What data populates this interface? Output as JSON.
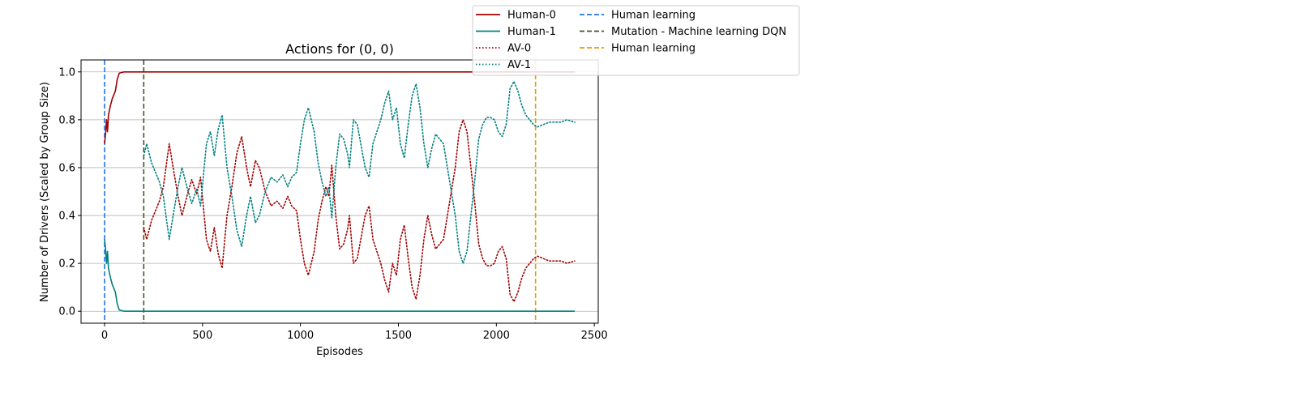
{
  "chart_data": {
    "type": "line",
    "title": "Actions for (0, 0)",
    "xlabel": "Episodes",
    "ylabel": "Number of Drivers (Scaled by Group Size)",
    "xlim": [
      -120,
      2520
    ],
    "ylim": [
      -0.05,
      1.05
    ],
    "x_ticks": [
      0,
      500,
      1000,
      1500,
      2000,
      2500
    ],
    "x_tick_labels": [
      "0",
      "500",
      "1000",
      "1500",
      "2000",
      "2500"
    ],
    "y_ticks": [
      0.0,
      0.2,
      0.4,
      0.6,
      0.8,
      1.0
    ],
    "y_tick_labels": [
      "0.0",
      "0.2",
      "0.4",
      "0.6",
      "0.8",
      "1.0"
    ],
    "grid": "horizontal",
    "legend_position": "top-right, outside plot",
    "series": [
      {
        "name": "Human-0",
        "color": "#a00000",
        "style": "solid",
        "points": [
          [
            0,
            0.7
          ],
          [
            5,
            0.74
          ],
          [
            10,
            0.8
          ],
          [
            15,
            0.75
          ],
          [
            20,
            0.82
          ],
          [
            30,
            0.86
          ],
          [
            40,
            0.89
          ],
          [
            55,
            0.92
          ],
          [
            65,
            0.97
          ],
          [
            75,
            0.995
          ],
          [
            100,
            1.0
          ],
          [
            200,
            1.0
          ],
          [
            500,
            1.0
          ],
          [
            1000,
            1.0
          ],
          [
            1500,
            1.0
          ],
          [
            2000,
            1.0
          ],
          [
            2400,
            1.0
          ]
        ]
      },
      {
        "name": "Human-1",
        "color": "#008080",
        "style": "solid",
        "points": [
          [
            0,
            0.3
          ],
          [
            5,
            0.26
          ],
          [
            10,
            0.2
          ],
          [
            15,
            0.25
          ],
          [
            20,
            0.18
          ],
          [
            30,
            0.14
          ],
          [
            40,
            0.11
          ],
          [
            55,
            0.08
          ],
          [
            65,
            0.03
          ],
          [
            75,
            0.005
          ],
          [
            100,
            0.0
          ],
          [
            200,
            0.0
          ],
          [
            500,
            0.0
          ],
          [
            1000,
            0.0
          ],
          [
            1500,
            0.0
          ],
          [
            2000,
            0.0
          ],
          [
            2400,
            0.0
          ]
        ]
      },
      {
        "name": "AV-0",
        "color": "#a00000",
        "style": "dotted",
        "points": [
          [
            200,
            0.35
          ],
          [
            215,
            0.3
          ],
          [
            240,
            0.38
          ],
          [
            280,
            0.46
          ],
          [
            300,
            0.52
          ],
          [
            330,
            0.7
          ],
          [
            350,
            0.6
          ],
          [
            375,
            0.48
          ],
          [
            395,
            0.4
          ],
          [
            420,
            0.48
          ],
          [
            445,
            0.55
          ],
          [
            470,
            0.49
          ],
          [
            490,
            0.56
          ],
          [
            520,
            0.3
          ],
          [
            540,
            0.25
          ],
          [
            560,
            0.35
          ],
          [
            580,
            0.24
          ],
          [
            600,
            0.18
          ],
          [
            625,
            0.4
          ],
          [
            650,
            0.52
          ],
          [
            675,
            0.66
          ],
          [
            700,
            0.73
          ],
          [
            725,
            0.6
          ],
          [
            745,
            0.52
          ],
          [
            770,
            0.63
          ],
          [
            790,
            0.6
          ],
          [
            820,
            0.5
          ],
          [
            850,
            0.44
          ],
          [
            880,
            0.46
          ],
          [
            910,
            0.43
          ],
          [
            935,
            0.48
          ],
          [
            955,
            0.44
          ],
          [
            980,
            0.42
          ],
          [
            1000,
            0.3
          ],
          [
            1020,
            0.2
          ],
          [
            1040,
            0.15
          ],
          [
            1070,
            0.25
          ],
          [
            1090,
            0.38
          ],
          [
            1110,
            0.46
          ],
          [
            1130,
            0.52
          ],
          [
            1145,
            0.48
          ],
          [
            1160,
            0.61
          ],
          [
            1180,
            0.4
          ],
          [
            1200,
            0.26
          ],
          [
            1220,
            0.28
          ],
          [
            1240,
            0.34
          ],
          [
            1250,
            0.4
          ],
          [
            1270,
            0.2
          ],
          [
            1290,
            0.22
          ],
          [
            1310,
            0.31
          ],
          [
            1330,
            0.4
          ],
          [
            1350,
            0.44
          ],
          [
            1370,
            0.3
          ],
          [
            1390,
            0.25
          ],
          [
            1410,
            0.2
          ],
          [
            1430,
            0.13
          ],
          [
            1450,
            0.08
          ],
          [
            1470,
            0.2
          ],
          [
            1490,
            0.15
          ],
          [
            1510,
            0.3
          ],
          [
            1530,
            0.36
          ],
          [
            1550,
            0.22
          ],
          [
            1570,
            0.1
          ],
          [
            1590,
            0.05
          ],
          [
            1610,
            0.15
          ],
          [
            1630,
            0.3
          ],
          [
            1650,
            0.4
          ],
          [
            1670,
            0.32
          ],
          [
            1690,
            0.26
          ],
          [
            1710,
            0.28
          ],
          [
            1730,
            0.3
          ],
          [
            1760,
            0.45
          ],
          [
            1790,
            0.6
          ],
          [
            1810,
            0.75
          ],
          [
            1830,
            0.8
          ],
          [
            1850,
            0.75
          ],
          [
            1870,
            0.6
          ],
          [
            1890,
            0.45
          ],
          [
            1910,
            0.28
          ],
          [
            1930,
            0.22
          ],
          [
            1950,
            0.19
          ],
          [
            1970,
            0.19
          ],
          [
            1990,
            0.2
          ],
          [
            2010,
            0.25
          ],
          [
            2030,
            0.27
          ],
          [
            2050,
            0.22
          ],
          [
            2070,
            0.07
          ],
          [
            2090,
            0.04
          ],
          [
            2110,
            0.08
          ],
          [
            2130,
            0.14
          ],
          [
            2150,
            0.18
          ],
          [
            2170,
            0.2
          ],
          [
            2190,
            0.22
          ],
          [
            2210,
            0.23
          ],
          [
            2240,
            0.22
          ],
          [
            2270,
            0.21
          ],
          [
            2300,
            0.21
          ],
          [
            2330,
            0.21
          ],
          [
            2360,
            0.2
          ],
          [
            2400,
            0.21
          ]
        ]
      },
      {
        "name": "AV-1",
        "color": "#008080",
        "style": "dotted",
        "points": [
          [
            200,
            0.65
          ],
          [
            215,
            0.7
          ],
          [
            240,
            0.62
          ],
          [
            280,
            0.54
          ],
          [
            300,
            0.48
          ],
          [
            330,
            0.3
          ],
          [
            350,
            0.4
          ],
          [
            375,
            0.52
          ],
          [
            395,
            0.6
          ],
          [
            420,
            0.52
          ],
          [
            445,
            0.45
          ],
          [
            470,
            0.51
          ],
          [
            490,
            0.44
          ],
          [
            520,
            0.7
          ],
          [
            540,
            0.75
          ],
          [
            560,
            0.65
          ],
          [
            580,
            0.76
          ],
          [
            600,
            0.82
          ],
          [
            625,
            0.6
          ],
          [
            650,
            0.48
          ],
          [
            675,
            0.34
          ],
          [
            700,
            0.27
          ],
          [
            725,
            0.4
          ],
          [
            745,
            0.48
          ],
          [
            770,
            0.37
          ],
          [
            790,
            0.4
          ],
          [
            820,
            0.5
          ],
          [
            850,
            0.56
          ],
          [
            880,
            0.54
          ],
          [
            910,
            0.57
          ],
          [
            935,
            0.52
          ],
          [
            955,
            0.56
          ],
          [
            980,
            0.58
          ],
          [
            1000,
            0.7
          ],
          [
            1020,
            0.8
          ],
          [
            1040,
            0.85
          ],
          [
            1070,
            0.75
          ],
          [
            1090,
            0.62
          ],
          [
            1110,
            0.54
          ],
          [
            1130,
            0.48
          ],
          [
            1145,
            0.52
          ],
          [
            1160,
            0.39
          ],
          [
            1180,
            0.6
          ],
          [
            1200,
            0.74
          ],
          [
            1220,
            0.72
          ],
          [
            1240,
            0.66
          ],
          [
            1250,
            0.6
          ],
          [
            1270,
            0.8
          ],
          [
            1290,
            0.78
          ],
          [
            1310,
            0.69
          ],
          [
            1330,
            0.6
          ],
          [
            1350,
            0.56
          ],
          [
            1370,
            0.7
          ],
          [
            1390,
            0.75
          ],
          [
            1410,
            0.8
          ],
          [
            1430,
            0.87
          ],
          [
            1450,
            0.92
          ],
          [
            1470,
            0.8
          ],
          [
            1490,
            0.85
          ],
          [
            1510,
            0.7
          ],
          [
            1530,
            0.64
          ],
          [
            1550,
            0.78
          ],
          [
            1570,
            0.9
          ],
          [
            1590,
            0.95
          ],
          [
            1610,
            0.85
          ],
          [
            1630,
            0.7
          ],
          [
            1650,
            0.6
          ],
          [
            1670,
            0.68
          ],
          [
            1690,
            0.74
          ],
          [
            1710,
            0.72
          ],
          [
            1730,
            0.7
          ],
          [
            1760,
            0.55
          ],
          [
            1790,
            0.4
          ],
          [
            1810,
            0.25
          ],
          [
            1830,
            0.2
          ],
          [
            1850,
            0.25
          ],
          [
            1870,
            0.4
          ],
          [
            1890,
            0.55
          ],
          [
            1910,
            0.72
          ],
          [
            1930,
            0.78
          ],
          [
            1950,
            0.81
          ],
          [
            1970,
            0.81
          ],
          [
            1990,
            0.8
          ],
          [
            2010,
            0.75
          ],
          [
            2030,
            0.73
          ],
          [
            2050,
            0.78
          ],
          [
            2070,
            0.93
          ],
          [
            2090,
            0.96
          ],
          [
            2110,
            0.92
          ],
          [
            2130,
            0.86
          ],
          [
            2150,
            0.82
          ],
          [
            2170,
            0.8
          ],
          [
            2190,
            0.78
          ],
          [
            2210,
            0.77
          ],
          [
            2240,
            0.78
          ],
          [
            2270,
            0.79
          ],
          [
            2300,
            0.79
          ],
          [
            2330,
            0.79
          ],
          [
            2360,
            0.8
          ],
          [
            2400,
            0.79
          ]
        ]
      }
    ],
    "vlines": [
      {
        "name": "Human learning",
        "x": 0,
        "color": "#1f77e6",
        "style": "dashed"
      },
      {
        "name": "Mutation - Machine learning DQN",
        "x": 200,
        "color": "#3d5a1e",
        "style": "dashed"
      },
      {
        "name": "Human learning",
        "x": 2200,
        "color": "#e89b0c",
        "style": "dashed"
      }
    ],
    "legend": [
      {
        "label": "Human-0",
        "color": "#a00000",
        "style": "solid"
      },
      {
        "label": "Human-1",
        "color": "#008080",
        "style": "solid"
      },
      {
        "label": "AV-0",
        "color": "#a00000",
        "style": "dotted"
      },
      {
        "label": "AV-1",
        "color": "#008080",
        "style": "dotted"
      },
      {
        "label": "Human learning",
        "color": "#1f77e6",
        "style": "dashed"
      },
      {
        "label": "Mutation - Machine learning DQN",
        "color": "#3d5a1e",
        "style": "dashed"
      },
      {
        "label": "Human learning",
        "color": "#e89b0c",
        "style": "dashed"
      }
    ]
  }
}
